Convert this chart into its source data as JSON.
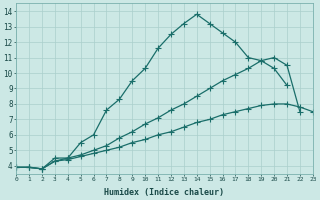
{
  "xlabel": "Humidex (Indice chaleur)",
  "xlim": [
    0,
    23
  ],
  "ylim": [
    3.5,
    14.5
  ],
  "xtick_labels": [
    "0",
    "1",
    "2",
    "3",
    "4",
    "5",
    "6",
    "7",
    "8",
    "9",
    "10",
    "11",
    "12",
    "13",
    "14",
    "15",
    "16",
    "17",
    "18",
    "19",
    "20",
    "21",
    "22",
    "23"
  ],
  "ytick_labels": [
    "4",
    "5",
    "6",
    "7",
    "8",
    "9",
    "10",
    "11",
    "12",
    "13",
    "14"
  ],
  "bg_color": "#cce8e5",
  "grid_color": "#aacfcc",
  "line_color": "#1a6e6a",
  "curve1_x": [
    0,
    1,
    2,
    3,
    4,
    5,
    6,
    7,
    8,
    9,
    10,
    11,
    12,
    13,
    14,
    15,
    16,
    17,
    18,
    19,
    20,
    21
  ],
  "curve1_y": [
    3.9,
    3.9,
    3.8,
    4.3,
    4.5,
    5.5,
    6.0,
    7.6,
    8.3,
    9.5,
    10.3,
    11.6,
    12.5,
    13.2,
    13.8,
    13.2,
    12.6,
    12.0,
    11.0,
    10.8,
    10.3,
    9.2
  ],
  "curve2_x": [
    0,
    1,
    2,
    3,
    4,
    5,
    6,
    7,
    8,
    9,
    10,
    11,
    12,
    13,
    14,
    15,
    16,
    17,
    18,
    19,
    20,
    21,
    22
  ],
  "curve2_y": [
    3.9,
    3.9,
    3.8,
    4.5,
    4.5,
    4.7,
    5.0,
    5.3,
    5.8,
    6.2,
    6.7,
    7.1,
    7.6,
    8.0,
    8.5,
    9.0,
    9.5,
    9.9,
    10.3,
    10.8,
    11.0,
    10.5,
    7.5
  ],
  "curve3_x": [
    0,
    1,
    2,
    3,
    4,
    5,
    6,
    7,
    8,
    9,
    10,
    11,
    12,
    13,
    14,
    15,
    16,
    17,
    18,
    19,
    20,
    21,
    22,
    23
  ],
  "curve3_y": [
    3.9,
    3.9,
    3.8,
    4.3,
    4.4,
    4.6,
    4.8,
    5.0,
    5.2,
    5.5,
    5.7,
    6.0,
    6.2,
    6.5,
    6.8,
    7.0,
    7.3,
    7.5,
    7.7,
    7.9,
    8.0,
    8.0,
    7.8,
    7.5
  ]
}
